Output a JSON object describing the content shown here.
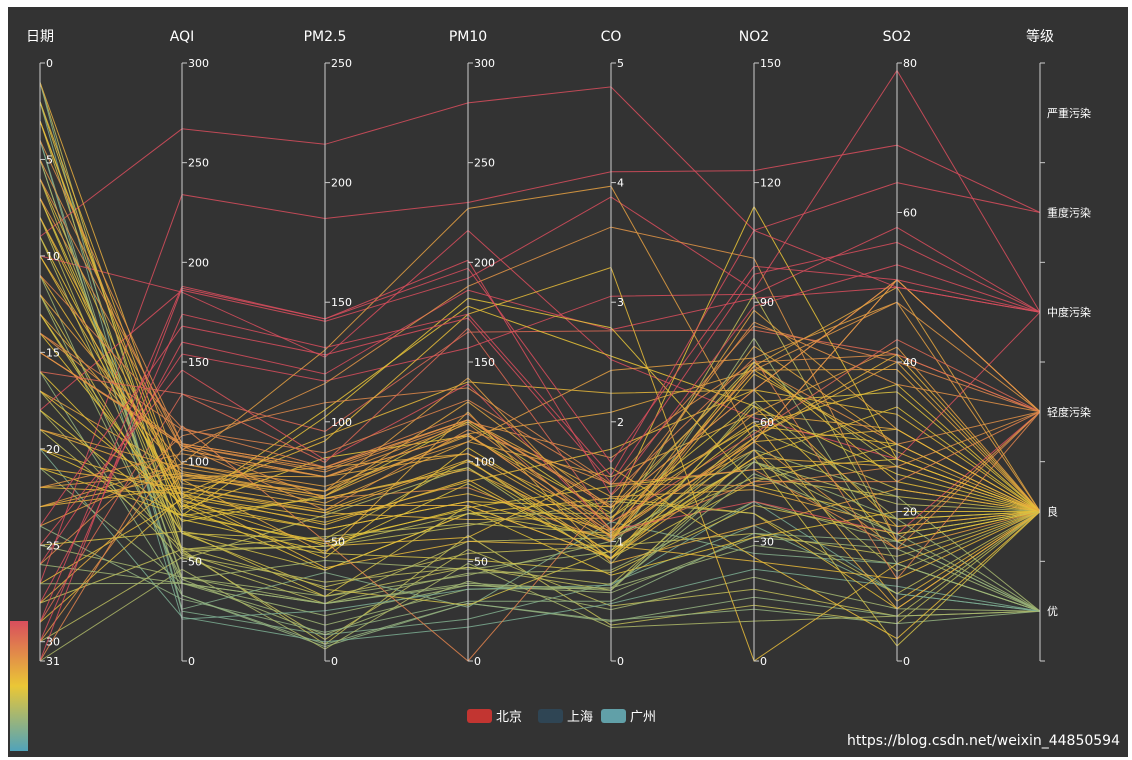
{
  "chart_data": {
    "type": "parallel",
    "title": "",
    "axes": [
      {
        "name": "日期",
        "min": 0,
        "max": 31,
        "inverse": true,
        "ticks": [
          0,
          5,
          10,
          15,
          20,
          25,
          30,
          31
        ]
      },
      {
        "name": "AQI",
        "min": 0,
        "max": 300,
        "ticks": [
          0,
          50,
          100,
          150,
          200,
          250,
          300
        ]
      },
      {
        "name": "PM2.5",
        "min": 0,
        "max": 250,
        "ticks": [
          0,
          50,
          100,
          150,
          200,
          250
        ]
      },
      {
        "name": "PM10",
        "min": 0,
        "max": 300,
        "ticks": [
          0,
          50,
          100,
          150,
          200,
          250,
          300
        ]
      },
      {
        "name": "CO",
        "min": 0,
        "max": 5,
        "ticks": [
          0,
          1,
          2,
          3,
          4,
          5
        ]
      },
      {
        "name": "NO2",
        "min": 0,
        "max": 150,
        "ticks": [
          0,
          30,
          60,
          90,
          120,
          150
        ]
      },
      {
        "name": "SO2",
        "min": 0,
        "max": 80,
        "ticks": [
          0,
          20,
          40,
          60,
          80
        ]
      },
      {
        "name": "等级",
        "type": "category",
        "categories": [
          "优",
          "良",
          "轻度污染",
          "中度污染",
          "重度污染",
          "严重污染"
        ]
      }
    ],
    "legend": {
      "position": "bottom-center",
      "items": [
        {
          "name": "北京",
          "color": "#c23531"
        },
        {
          "name": "上海",
          "color": "#2f4554"
        },
        {
          "name": "广州",
          "color": "#61a0a8"
        }
      ]
    },
    "visual_map": {
      "dimension": "AQI",
      "colors": [
        "#50a3ba",
        "#eac736",
        "#d94e5d"
      ],
      "min": 0,
      "max": 150
    },
    "series": [
      {
        "name": "北京",
        "data": [
          [
            1,
            55,
            9,
            56,
            0.46,
            18,
            6,
            "良"
          ],
          [
            2,
            25,
            11,
            21,
            0.65,
            34,
            9,
            "优"
          ],
          [
            3,
            56,
            7,
            63,
            0.3,
            14,
            5,
            "良"
          ],
          [
            4,
            33,
            7,
            29,
            0.33,
            16,
            6,
            "优"
          ],
          [
            5,
            42,
            24,
            44,
            0.76,
            40,
            16,
            "优"
          ],
          [
            6,
            82,
            58,
            90,
            1.77,
            68,
            33,
            "良"
          ],
          [
            7,
            74,
            49,
            77,
            1.46,
            48,
            27,
            "良"
          ],
          [
            8,
            78,
            55,
            80,
            1.29,
            59,
            29,
            "良"
          ],
          [
            9,
            267,
            216,
            280,
            4.8,
            108,
            64,
            "重度污染"
          ],
          [
            10,
            185,
            127,
            216,
            2.52,
            61,
            27,
            "中度污染"
          ],
          [
            11,
            39,
            19,
            38,
            0.57,
            31,
            15,
            "优"
          ],
          [
            12,
            41,
            11,
            40,
            0.43,
            21,
            7,
            "优"
          ],
          [
            13,
            64,
            38,
            74,
            1.04,
            46,
            22,
            "良"
          ],
          [
            14,
            108,
            79,
            120,
            1.7,
            75,
            41,
            "轻度污染"
          ],
          [
            15,
            108,
            63,
            116,
            1.48,
            44,
            26,
            "轻度污染"
          ],
          [
            16,
            33,
            6,
            29,
            0.34,
            13,
            5,
            "优"
          ],
          [
            17,
            94,
            66,
            110,
            1.54,
            62,
            31,
            "良"
          ],
          [
            18,
            186,
            142,
            192,
            3.88,
            93,
            79,
            "中度污染"
          ],
          [
            19,
            57,
            31,
            54,
            0.96,
            32,
            14,
            "良"
          ],
          [
            20,
            22,
            8,
            17,
            0.48,
            23,
            10,
            "优"
          ],
          [
            21,
            39,
            15,
            36,
            0.61,
            29,
            13,
            "优"
          ],
          [
            22,
            94,
            69,
            114,
            2.08,
            73,
            39,
            "良"
          ],
          [
            23,
            99,
            73,
            110,
            2.43,
            76,
            48,
            "良"
          ],
          [
            24,
            31,
            12,
            30,
            0.5,
            32,
            16,
            "优"
          ],
          [
            25,
            42,
            27,
            43,
            1.0,
            53,
            22,
            "优"
          ],
          [
            26,
            154,
            117,
            157,
            3.05,
            92,
            58,
            "中度污染"
          ],
          [
            27,
            234,
            185,
            230,
            4.09,
            123,
            69,
            "重度污染"
          ],
          [
            28,
            160,
            120,
            186,
            2.77,
            91,
            50,
            "中度污染"
          ],
          [
            29,
            134,
            96,
            165,
            2.76,
            83,
            41,
            "轻度污染"
          ],
          [
            30,
            52,
            24,
            60,
            1.03,
            50,
            21,
            "良"
          ],
          [
            31,
            46,
            5,
            49,
            0.28,
            10,
            6,
            "优"
          ]
        ]
      },
      {
        "name": "上海",
        "data": [
          [
            1,
            26,
            37,
            27,
            1.163,
            27,
            13,
            "优"
          ],
          [
            2,
            85,
            62,
            71,
            1.195,
            60,
            8,
            "良"
          ],
          [
            3,
            78,
            38,
            74,
            1.363,
            37,
            7,
            "良"
          ],
          [
            4,
            21,
            21,
            36,
            0.634,
            40,
            9,
            "优"
          ],
          [
            5,
            41,
            42,
            46,
            0.915,
            81,
            13,
            "优"
          ],
          [
            6,
            56,
            52,
            69,
            1.067,
            92,
            16,
            "良"
          ],
          [
            7,
            64,
            30,
            28,
            0.924,
            51,
            2,
            "良"
          ],
          [
            8,
            55,
            48,
            74,
            1.236,
            75,
            26,
            "良"
          ],
          [
            9,
            76,
            85,
            113,
            1.237,
            114,
            27,
            "良"
          ],
          [
            10,
            91,
            81,
            104,
            1.041,
            56,
            40,
            "良"
          ],
          [
            11,
            84,
            39,
            60,
            0.964,
            25,
            11,
            "良"
          ],
          [
            12,
            64,
            51,
            101,
            0.862,
            58,
            23,
            "良"
          ],
          [
            13,
            70,
            69,
            120,
            1.198,
            65,
            36,
            "良"
          ],
          [
            14,
            77,
            105,
            178,
            2.549,
            64,
            16,
            "良"
          ],
          [
            15,
            109,
            68,
            87,
            0.996,
            74,
            29,
            "轻度污染"
          ],
          [
            16,
            73,
            68,
            97,
            0.905,
            51,
            34,
            "良"
          ],
          [
            17,
            54,
            27,
            47,
            0.592,
            53,
            12,
            "良"
          ],
          [
            18,
            51,
            61,
            97,
            0.811,
            65,
            19,
            "良"
          ],
          [
            19,
            91,
            71,
            121,
            1.374,
            43,
            18,
            "良"
          ],
          [
            20,
            73,
            102,
            182,
            2.787,
            44,
            19,
            "良"
          ],
          [
            21,
            73,
            50,
            76,
            0.717,
            31,
            20,
            "良"
          ],
          [
            22,
            84,
            94,
            140,
            2.238,
            68,
            18,
            "良"
          ],
          [
            23,
            93,
            77,
            104,
            1.165,
            53,
            7,
            "良"
          ],
          [
            24,
            99,
            130,
            227,
            3.97,
            55,
            15,
            "良"
          ],
          [
            25,
            146,
            84,
            139,
            1.094,
            40,
            17,
            "轻度污染"
          ],
          [
            26,
            113,
            108,
            137,
            1.481,
            48,
            15,
            "轻度污染"
          ],
          [
            27,
            81,
            48,
            62,
            1.619,
            26,
            3,
            "良"
          ],
          [
            28,
            56,
            48,
            68,
            1.336,
            37,
            9,
            "良"
          ],
          [
            29,
            82,
            92,
            174,
            3.29,
            0,
            13,
            "良"
          ],
          [
            30,
            106,
            116,
            188,
            3.628,
            101,
            16,
            "轻度污染"
          ],
          [
            31,
            118,
            50,
            0,
            1.383,
            76,
            11,
            "轻度污染"
          ]
        ]
      },
      {
        "name": "广州",
        "data": [
          [
            1,
            91,
            45,
            125,
            0.82,
            34,
            23,
            "良"
          ],
          [
            2,
            65,
            27,
            78,
            0.86,
            45,
            29,
            "良"
          ],
          [
            3,
            83,
            60,
            84,
            1.09,
            73,
            27,
            "良"
          ],
          [
            4,
            109,
            81,
            121,
            1.28,
            68,
            51,
            "轻度污染"
          ],
          [
            5,
            106,
            77,
            114,
            1.07,
            55,
            51,
            "轻度污染"
          ],
          [
            6,
            109,
            81,
            121,
            1.28,
            68,
            51,
            "轻度污染"
          ],
          [
            7,
            106,
            77,
            114,
            1.07,
            55,
            51,
            "轻度污染"
          ],
          [
            8,
            89,
            65,
            78,
            0.86,
            51,
            26,
            "良"
          ],
          [
            9,
            53,
            33,
            47,
            0.64,
            50,
            17,
            "良"
          ],
          [
            10,
            80,
            55,
            80,
            1.01,
            75,
            24,
            "良"
          ],
          [
            11,
            117,
            81,
            124,
            1.03,
            45,
            24,
            "轻度污染"
          ],
          [
            12,
            99,
            71,
            142,
            1.1,
            62,
            42,
            "良"
          ],
          [
            13,
            95,
            69,
            130,
            1.28,
            74,
            50,
            "良"
          ],
          [
            14,
            116,
            87,
            131,
            1.47,
            84,
            40,
            "轻度污染"
          ],
          [
            15,
            108,
            80,
            121,
            1.3,
            85,
            37,
            "轻度污染"
          ],
          [
            16,
            134,
            83,
            167,
            1.16,
            57,
            43,
            "轻度污染"
          ],
          [
            17,
            79,
            43,
            107,
            1.05,
            59,
            37,
            "良"
          ],
          [
            18,
            71,
            46,
            89,
            0.86,
            64,
            25,
            "良"
          ],
          [
            19,
            97,
            71,
            113,
            1.17,
            88,
            31,
            "良"
          ],
          [
            20,
            84,
            57,
            91,
            0.85,
            55,
            31,
            "良"
          ],
          [
            21,
            87,
            63,
            101,
            0.9,
            56,
            41,
            "良"
          ],
          [
            22,
            104,
            77,
            119,
            1.09,
            73,
            48,
            "轻度污染"
          ],
          [
            23,
            87,
            62,
            100,
            1,
            72,
            28,
            "良"
          ],
          [
            24,
            168,
            128,
            172,
            1.49,
            97,
            56,
            "中度污染"
          ],
          [
            25,
            65,
            45,
            51,
            0.74,
            39,
            17,
            "良"
          ],
          [
            26,
            39,
            24,
            38,
            0.61,
            47,
            17,
            "优"
          ],
          [
            27,
            39,
            24,
            39,
            0.59,
            50,
            19,
            "优"
          ],
          [
            28,
            93,
            68,
            96,
            1.05,
            79,
            29,
            "良"
          ],
          [
            29,
            188,
            143,
            197,
            1.66,
            99,
            51,
            "中度污染"
          ],
          [
            30,
            174,
            131,
            174,
            1.55,
            108,
            50,
            "中度污染"
          ],
          [
            31,
            187,
            143,
            201,
            1.39,
            89,
            53,
            "中度污染"
          ]
        ]
      }
    ]
  },
  "watermark": "https://blog.csdn.net/weixin_44850594"
}
